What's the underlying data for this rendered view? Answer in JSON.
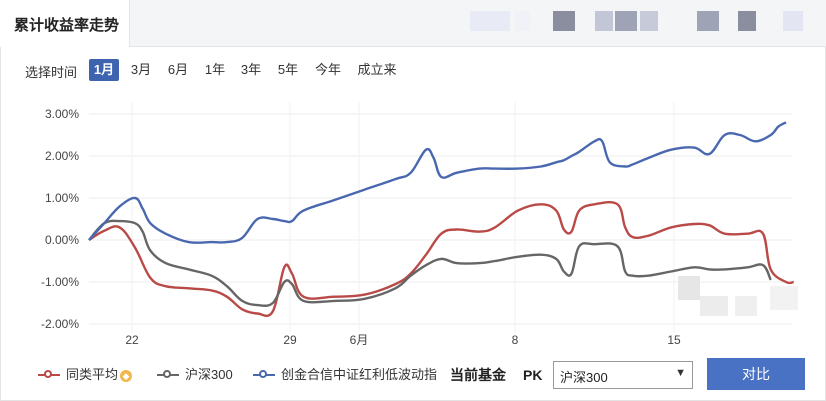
{
  "tab": {
    "title": "累计收益率走势"
  },
  "period": {
    "label": "选择时间",
    "options": [
      "1月",
      "3月",
      "6月",
      "1年",
      "3年",
      "5年",
      "今年",
      "成立来"
    ],
    "selected": "1月"
  },
  "chart_data": {
    "type": "line",
    "ylim": [
      -2.0,
      3.0
    ],
    "yticks": [
      "3.00%",
      "2.00%",
      "1.00%",
      "0.00%",
      "-1.00%",
      "-2.00%"
    ],
    "xticks": [
      "22",
      "29",
      "6月",
      "8",
      "15"
    ],
    "grid": true,
    "series": [
      {
        "name": "同类平均",
        "color": "#b94a48",
        "points": [
          [
            0,
            0.0
          ],
          [
            2,
            0.22
          ],
          [
            4,
            0.3
          ],
          [
            6,
            -0.18
          ],
          [
            8,
            -0.9
          ],
          [
            10,
            -1.1
          ],
          [
            13,
            -1.15
          ],
          [
            16,
            -1.2
          ],
          [
            18,
            -1.35
          ],
          [
            20,
            -1.65
          ],
          [
            22,
            -1.75
          ],
          [
            24,
            -1.7
          ],
          [
            25.5,
            -0.65
          ],
          [
            26.5,
            -0.8
          ],
          [
            28,
            -1.35
          ],
          [
            32,
            -1.35
          ],
          [
            36,
            -1.3
          ],
          [
            40,
            -1.05
          ],
          [
            42,
            -0.8
          ],
          [
            44,
            -0.35
          ],
          [
            46,
            0.15
          ],
          [
            48,
            0.25
          ],
          [
            51,
            0.2
          ],
          [
            53,
            0.3
          ],
          [
            56,
            0.7
          ],
          [
            59,
            0.85
          ],
          [
            61,
            0.7
          ],
          [
            62,
            0.25
          ],
          [
            63,
            0.2
          ],
          [
            64,
            0.7
          ],
          [
            66,
            0.85
          ],
          [
            69,
            0.85
          ],
          [
            70,
            0.3
          ],
          [
            71,
            0.07
          ],
          [
            73,
            0.1
          ],
          [
            76,
            0.3
          ],
          [
            79,
            0.38
          ],
          [
            81,
            0.35
          ],
          [
            83,
            0.15
          ],
          [
            86,
            0.15
          ],
          [
            88,
            0.15
          ],
          [
            89,
            -0.7
          ],
          [
            91,
            -1.0
          ],
          [
            92,
            -1.0
          ]
        ]
      },
      {
        "name": "沪深300",
        "color": "#666666",
        "points": [
          [
            0,
            0.0
          ],
          [
            2,
            0.4
          ],
          [
            4,
            0.45
          ],
          [
            6,
            0.4
          ],
          [
            7,
            0.2
          ],
          [
            8,
            -0.25
          ],
          [
            10,
            -0.55
          ],
          [
            13,
            -0.7
          ],
          [
            16,
            -0.85
          ],
          [
            18,
            -1.1
          ],
          [
            20,
            -1.45
          ],
          [
            22,
            -1.55
          ],
          [
            24,
            -1.5
          ],
          [
            25.5,
            -1.0
          ],
          [
            26.5,
            -1.05
          ],
          [
            28,
            -1.45
          ],
          [
            32,
            -1.45
          ],
          [
            36,
            -1.4
          ],
          [
            40,
            -1.15
          ],
          [
            42,
            -0.85
          ],
          [
            44,
            -0.6
          ],
          [
            46,
            -0.45
          ],
          [
            48,
            -0.55
          ],
          [
            51,
            -0.55
          ],
          [
            53,
            -0.5
          ],
          [
            56,
            -0.4
          ],
          [
            59,
            -0.35
          ],
          [
            61,
            -0.45
          ],
          [
            62,
            -0.75
          ],
          [
            63,
            -0.8
          ],
          [
            64,
            -0.15
          ],
          [
            66,
            -0.1
          ],
          [
            69,
            -0.15
          ],
          [
            70,
            -0.75
          ],
          [
            71,
            -0.85
          ],
          [
            73,
            -0.85
          ],
          [
            76,
            -0.75
          ],
          [
            79,
            -0.65
          ],
          [
            81,
            -0.7
          ],
          [
            83,
            -0.7
          ],
          [
            86,
            -0.65
          ],
          [
            88,
            -0.6
          ],
          [
            89,
            -0.95
          ]
        ]
      },
      {
        "name": "创金合信中证红利低波动指",
        "color": "#4a68b0",
        "points": [
          [
            0,
            0.0
          ],
          [
            2,
            0.4
          ],
          [
            4,
            0.8
          ],
          [
            6,
            1.0
          ],
          [
            7,
            0.75
          ],
          [
            8,
            0.4
          ],
          [
            10,
            0.15
          ],
          [
            13,
            -0.05
          ],
          [
            16,
            -0.05
          ],
          [
            18,
            -0.05
          ],
          [
            20,
            0.05
          ],
          [
            22,
            0.5
          ],
          [
            24,
            0.5
          ],
          [
            25.5,
            0.45
          ],
          [
            26.5,
            0.45
          ],
          [
            28,
            0.7
          ],
          [
            32,
            0.95
          ],
          [
            36,
            1.2
          ],
          [
            40,
            1.45
          ],
          [
            42,
            1.6
          ],
          [
            44,
            2.15
          ],
          [
            45,
            1.95
          ],
          [
            46,
            1.5
          ],
          [
            48,
            1.6
          ],
          [
            51,
            1.7
          ],
          [
            53,
            1.7
          ],
          [
            56,
            1.7
          ],
          [
            59,
            1.75
          ],
          [
            61,
            1.85
          ],
          [
            62,
            1.9
          ],
          [
            63,
            2.0
          ],
          [
            64,
            2.1
          ],
          [
            66,
            2.35
          ],
          [
            67,
            2.35
          ],
          [
            68,
            1.85
          ],
          [
            70,
            1.75
          ],
          [
            71,
            1.8
          ],
          [
            73,
            1.95
          ],
          [
            76,
            2.15
          ],
          [
            79,
            2.2
          ],
          [
            81,
            2.05
          ],
          [
            83,
            2.5
          ],
          [
            85,
            2.5
          ],
          [
            87,
            2.35
          ],
          [
            89,
            2.5
          ],
          [
            90,
            2.7
          ],
          [
            91,
            2.8
          ]
        ]
      }
    ]
  },
  "legend": {
    "items": [
      {
        "label": "同类平均",
        "color": "#b94a48"
      },
      {
        "label": "沪深300",
        "color": "#666666"
      },
      {
        "label": "创金合信中证红利低波动指",
        "color": "#4a68b0"
      }
    ]
  },
  "compare": {
    "current_label": "当前基金",
    "pk_label": "PK",
    "selected": "沪深300",
    "button_label": "对比"
  }
}
